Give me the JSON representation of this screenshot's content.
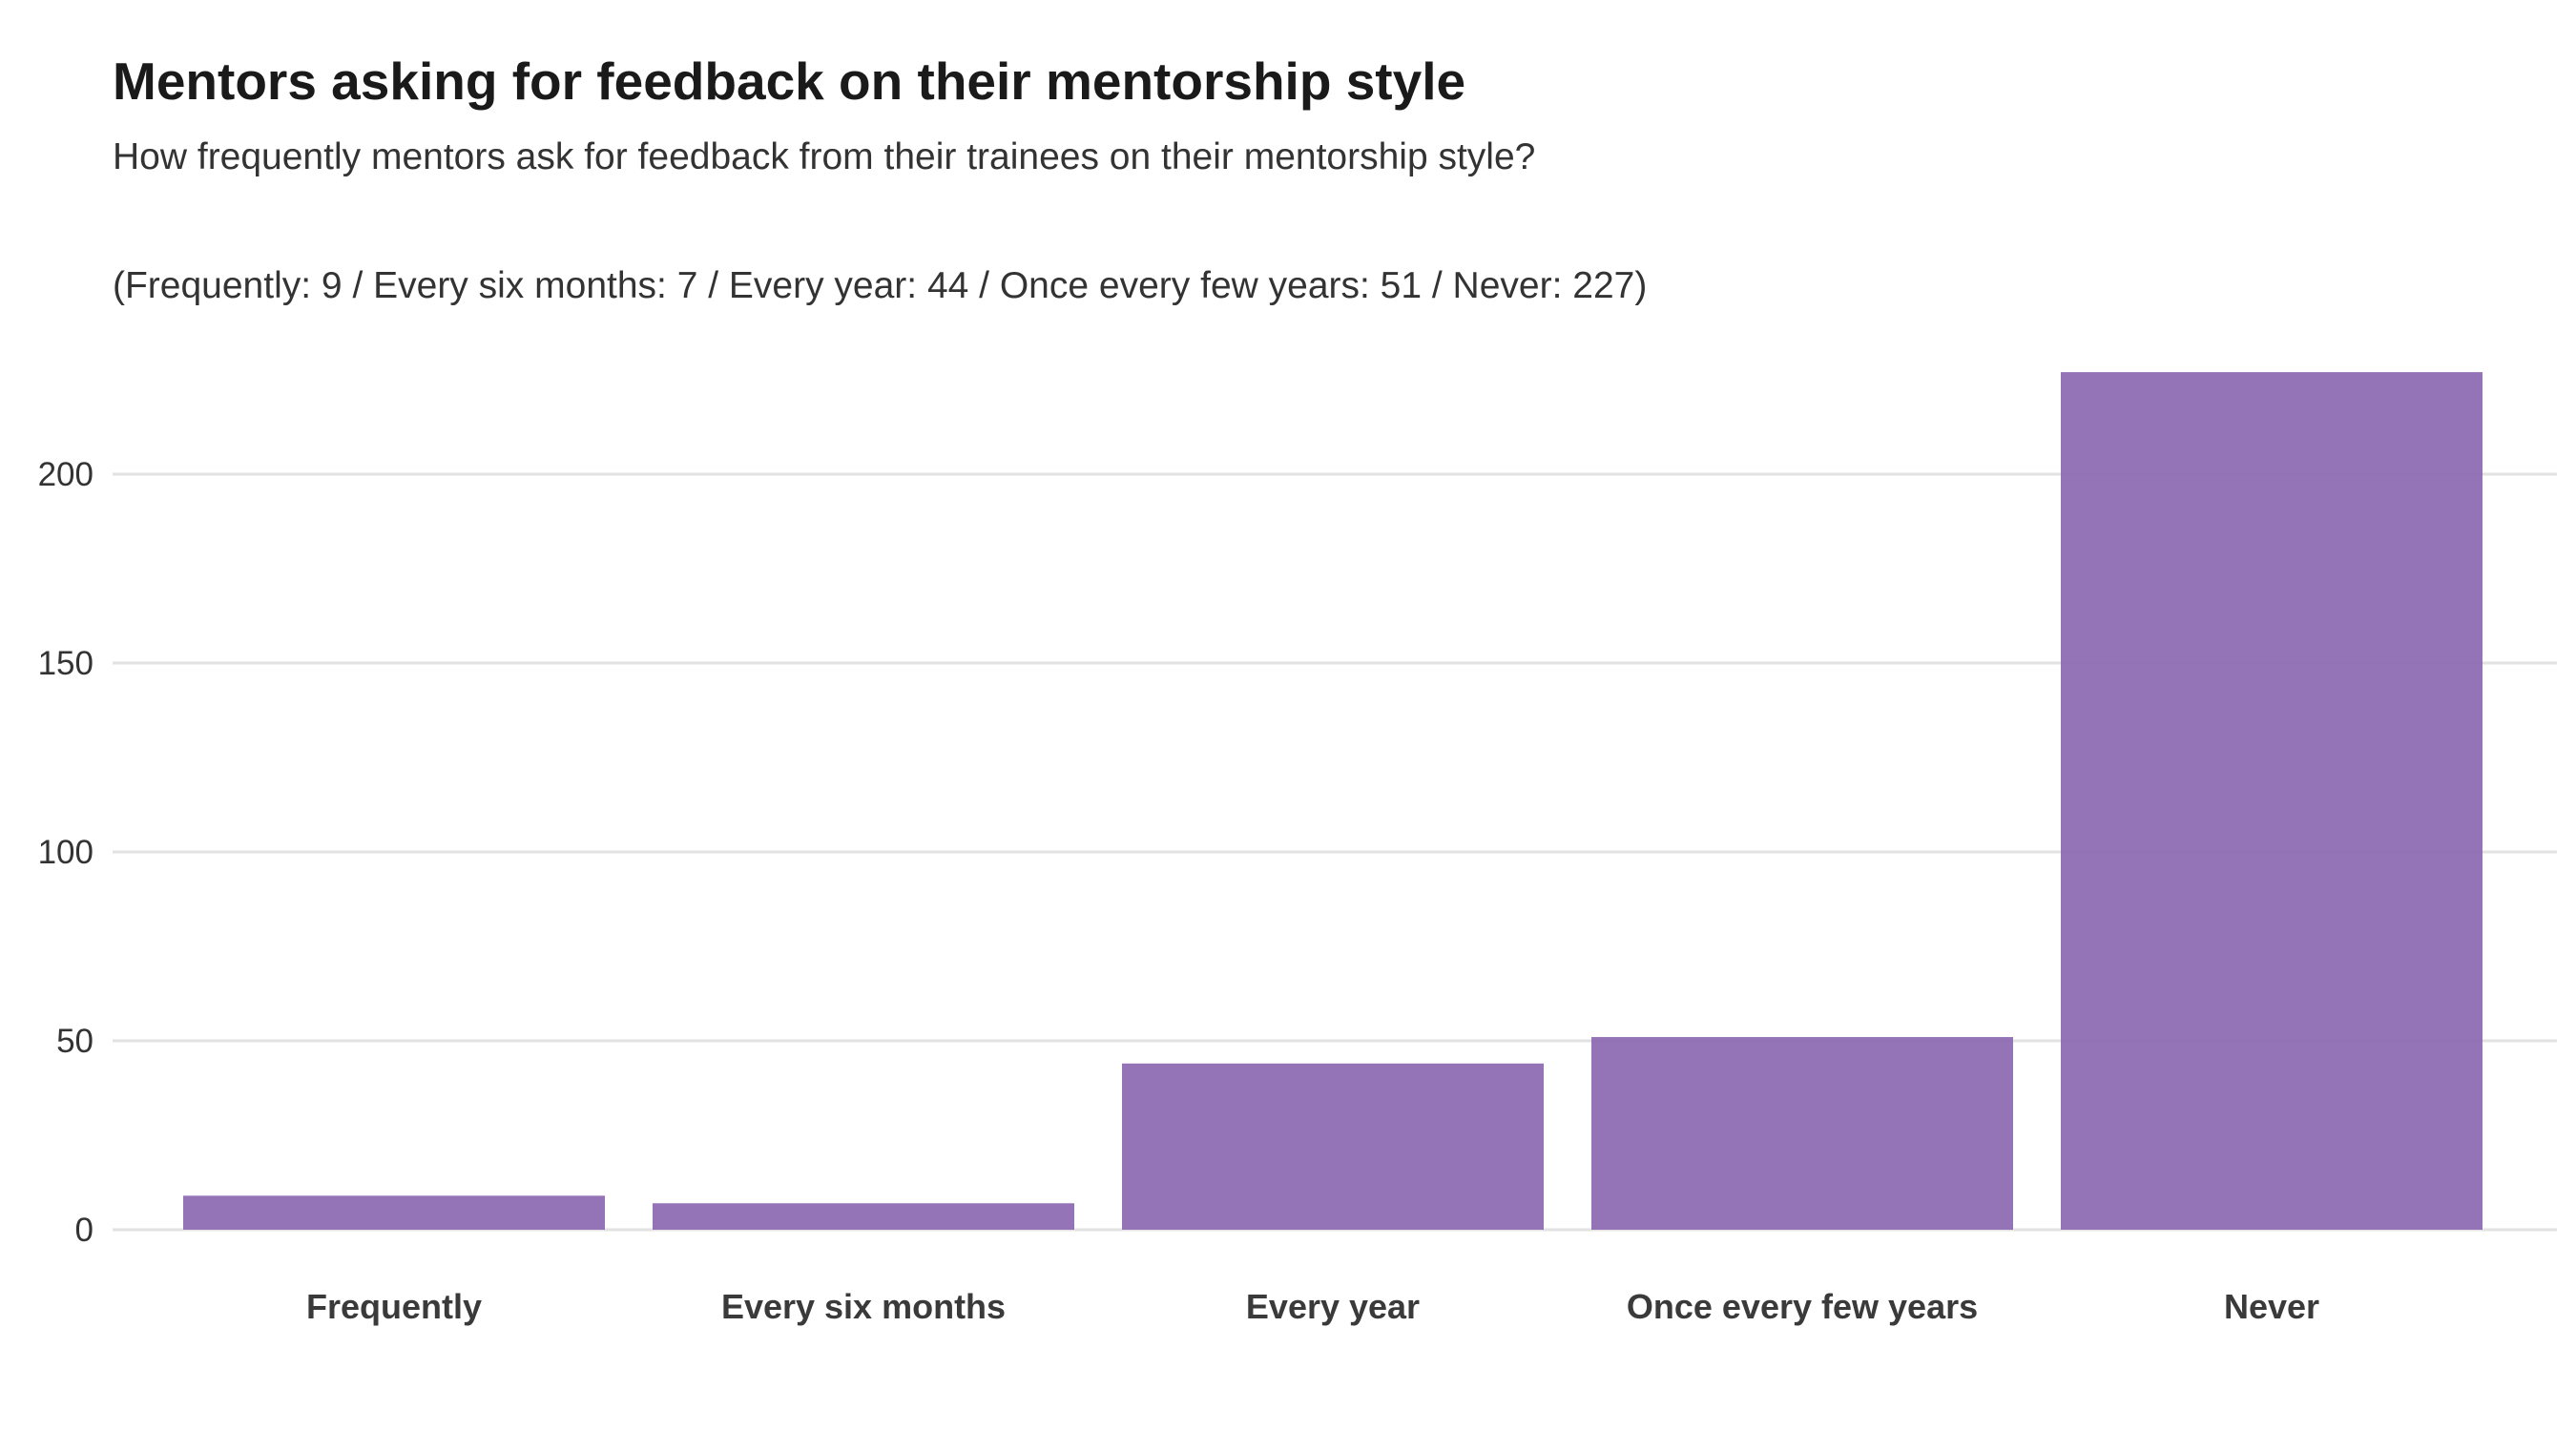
{
  "chart_data": {
    "type": "bar",
    "title": "Mentors asking for feedback on their mentorship style",
    "subtitle": "How frequently mentors ask for feedback from their trainees on their mentorship style?",
    "caption": "(Frequently: 9 / Every six months: 7 / Every year: 44 / Once every few years: 51 / Never: 227)",
    "categories": [
      "Frequently",
      "Every six months",
      "Every year",
      "Once every few years",
      "Never"
    ],
    "values": [
      9,
      7,
      44,
      51,
      227
    ],
    "xlabel": "",
    "ylabel": "",
    "ylim": [
      0,
      227
    ],
    "yticks": [
      0,
      50,
      100,
      150,
      200
    ],
    "grid": "horizontal",
    "legend": "none",
    "bar_color": "#8b68b0"
  }
}
